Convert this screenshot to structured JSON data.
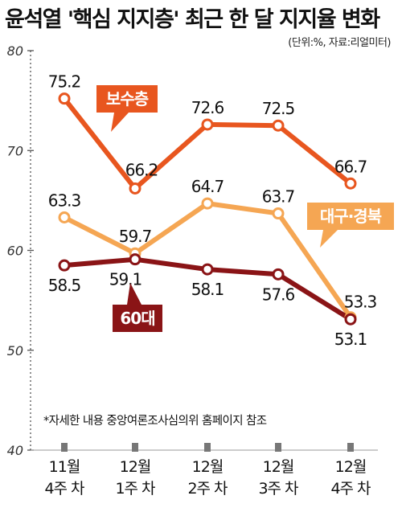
{
  "chart_data": {
    "type": "line",
    "title": "윤석열 '핵심 지지층' 최근 한 달 지지율 변화",
    "unit_note": "(단위:%, 자료:리얼미터)",
    "footnote": "*자세한 내용 중앙여론조사심의위 홈페이지 참조",
    "categories": [
      {
        "line1": "11월",
        "line2": "4주 차"
      },
      {
        "line1": "12월",
        "line2": "1주 차"
      },
      {
        "line1": "12월",
        "line2": "2주 차"
      },
      {
        "line1": "12월",
        "line2": "3주 차"
      },
      {
        "line1": "12월",
        "line2": "4주 차"
      }
    ],
    "ylim": [
      40,
      80
    ],
    "yticks": [
      "40",
      "50",
      "60",
      "70",
      "80"
    ],
    "grid": false,
    "series": [
      {
        "name": "보수층",
        "color": "#e8561f",
        "values": [
          75.2,
          66.2,
          72.6,
          72.5,
          66.7
        ],
        "labels": [
          "75.2",
          "66.2",
          "72.6",
          "72.5",
          "66.7"
        ]
      },
      {
        "name": "대구·경북",
        "color": "#f5a653",
        "values": [
          63.3,
          59.7,
          64.7,
          63.7,
          53.3
        ],
        "labels": [
          "63.3",
          "59.7",
          "64.7",
          "63.7",
          "53.3"
        ]
      },
      {
        "name": "60대",
        "color": "#8a1416",
        "values": [
          58.5,
          59.1,
          58.1,
          57.6,
          53.1
        ],
        "labels": [
          "58.5",
          "59.1",
          "58.1",
          "57.6",
          "53.1"
        ]
      }
    ]
  }
}
